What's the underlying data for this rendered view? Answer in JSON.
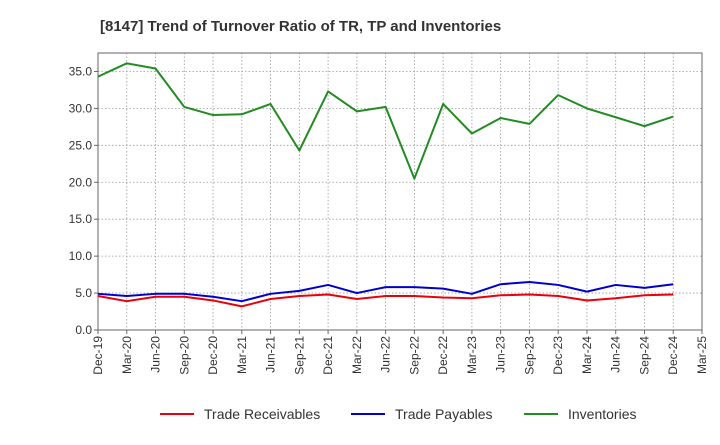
{
  "chart_data": {
    "type": "line",
    "title": "[8147]  Trend of Turnover Ratio of TR, TP and Inventories",
    "xlabel": "",
    "ylabel": "",
    "ylim": [
      0,
      37.5
    ],
    "yticks": [
      "0.0",
      "5.0",
      "10.0",
      "15.0",
      "20.0",
      "25.0",
      "30.0",
      "35.0"
    ],
    "ytick_values": [
      0,
      5,
      10,
      15,
      20,
      25,
      30,
      35
    ],
    "x_tick_labels": [
      "Dec-19",
      "Mar-20",
      "Jun-20",
      "Sep-20",
      "Dec-20",
      "Mar-21",
      "Jun-21",
      "Sep-21",
      "Dec-21",
      "Mar-22",
      "Jun-22",
      "Sep-22",
      "Dec-22",
      "Mar-23",
      "Jun-23",
      "Sep-23",
      "Dec-23",
      "Mar-24",
      "Jun-24",
      "Sep-24",
      "Dec-24",
      "Mar-25"
    ],
    "categories": [
      "Dec-19",
      "Mar-20",
      "Jun-20",
      "Sep-20",
      "Dec-20",
      "Mar-21",
      "Jun-21",
      "Sep-21",
      "Dec-21",
      "Mar-22",
      "Jun-22",
      "Sep-22",
      "Dec-22",
      "Mar-23",
      "Jun-23",
      "Sep-23",
      "Dec-23",
      "Mar-24",
      "Jun-24",
      "Sep-24",
      "Dec-24"
    ],
    "grid": true,
    "legend_position": "bottom",
    "series": [
      {
        "name": "Trade Receivables",
        "color": "#e8000b",
        "values": [
          4.6,
          3.9,
          4.5,
          4.5,
          4.0,
          3.2,
          4.2,
          4.6,
          4.8,
          4.2,
          4.6,
          4.6,
          4.4,
          4.3,
          4.7,
          4.8,
          4.6,
          4.0,
          4.3,
          4.7,
          4.8
        ]
      },
      {
        "name": "Trade Payables",
        "color": "#0000cd",
        "values": [
          4.9,
          4.6,
          4.9,
          4.9,
          4.5,
          3.9,
          4.9,
          5.3,
          6.1,
          5.0,
          5.8,
          5.8,
          5.6,
          4.9,
          6.2,
          6.5,
          6.1,
          5.2,
          6.1,
          5.7,
          6.2
        ]
      },
      {
        "name": "Inventories",
        "color": "#228b22",
        "values": [
          34.3,
          36.1,
          35.4,
          30.2,
          29.1,
          29.2,
          30.6,
          24.3,
          32.3,
          29.6,
          30.2,
          20.5,
          30.6,
          26.6,
          28.7,
          27.9,
          31.8,
          30.0,
          28.8,
          27.6,
          28.9
        ]
      }
    ]
  }
}
